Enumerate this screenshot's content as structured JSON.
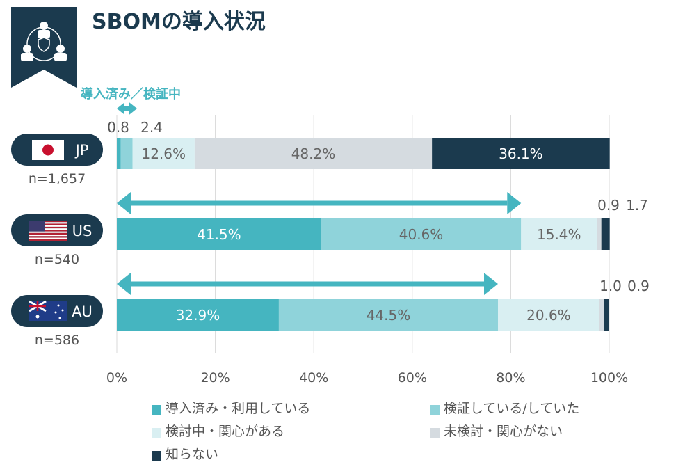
{
  "title": "SBOMの導入状況",
  "annotation": "導入済み／検証中",
  "colors": {
    "adopted": "#45b5c0",
    "verifying": "#8fd3da",
    "considering": "#d9eff2",
    "not_considered": "#d5dbe0",
    "unknown": "#1b3a4e",
    "dark": "#1b3a4e"
  },
  "chart_data": {
    "type": "bar",
    "orientation": "horizontal-stacked-100",
    "categories": [
      "JP",
      "US",
      "AU"
    ],
    "sample_sizes": [
      "n=1,657",
      "n=540",
      "n=586"
    ],
    "series": [
      {
        "name": "導入済み・利用している",
        "values": [
          0.8,
          41.5,
          32.9
        ]
      },
      {
        "name": "検証している/していた",
        "values": [
          2.4,
          40.6,
          44.5
        ]
      },
      {
        "name": "検討中・関心がある",
        "values": [
          12.6,
          15.4,
          20.6
        ]
      },
      {
        "name": "未検討・関心がない",
        "values": [
          48.2,
          0.9,
          1.0
        ]
      },
      {
        "name": "知らない",
        "values": [
          36.1,
          1.7,
          0.9
        ]
      }
    ],
    "data_labels": [
      [
        "0.8",
        "2.4",
        "12.6%",
        "48.2%",
        "36.1%"
      ],
      [
        "41.5%",
        "40.6%",
        "15.4%",
        "0.9",
        "1.7"
      ],
      [
        "32.9%",
        "44.5%",
        "20.6%",
        "1.0",
        "0.9"
      ]
    ],
    "xlim": [
      0,
      100
    ],
    "x_ticks": [
      "0%",
      "20%",
      "40%",
      "60%",
      "80%",
      "100%"
    ],
    "grid": true,
    "legend_position": "bottom"
  }
}
